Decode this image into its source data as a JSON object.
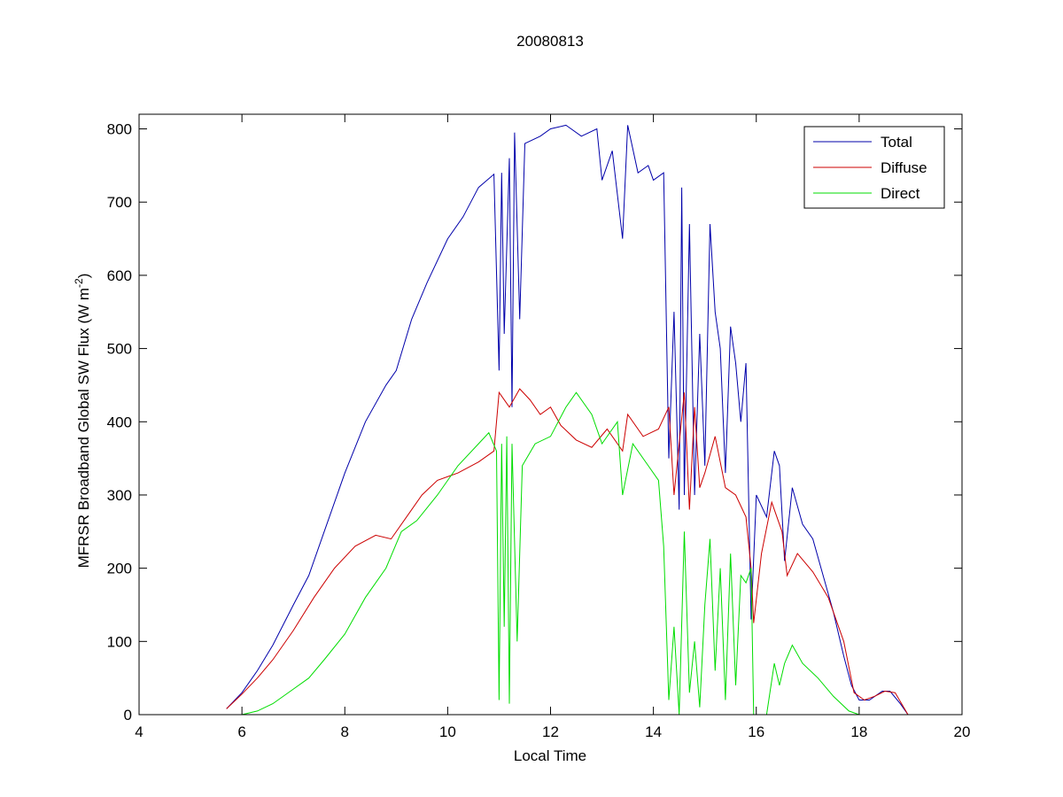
{
  "chart_data": {
    "type": "line",
    "title": "20080813",
    "xlabel": "Local Time",
    "ylabel": {
      "text": "MFRSR Broadband Global SW Flux (W m",
      "superscript": "-2",
      "suffix": ")"
    },
    "xlim": [
      4,
      20
    ],
    "xticks": [
      4,
      6,
      8,
      10,
      12,
      14,
      16,
      18,
      20
    ],
    "ylim": [
      0,
      820
    ],
    "yticks": [
      0,
      100,
      200,
      300,
      400,
      500,
      600,
      700,
      800
    ],
    "legend": "northeast",
    "series": [
      {
        "name": "Total",
        "color": "#0000aa",
        "x": [
          5.7,
          6.0,
          6.3,
          6.6,
          7.0,
          7.3,
          7.6,
          8.0,
          8.4,
          8.8,
          9.0,
          9.3,
          9.6,
          10.0,
          10.3,
          10.6,
          10.9,
          11.0,
          11.05,
          11.1,
          11.2,
          11.25,
          11.3,
          11.4,
          11.5,
          11.8,
          12.0,
          12.3,
          12.6,
          12.9,
          13.0,
          13.2,
          13.4,
          13.5,
          13.7,
          13.9,
          14.0,
          14.2,
          14.3,
          14.4,
          14.5,
          14.55,
          14.6,
          14.7,
          14.8,
          14.9,
          15.0,
          15.1,
          15.2,
          15.3,
          15.4,
          15.5,
          15.6,
          15.7,
          15.8,
          15.9,
          16.0,
          16.2,
          16.35,
          16.45,
          16.55,
          16.7,
          16.9,
          17.1,
          17.3,
          17.5,
          17.7,
          17.85,
          18.0,
          18.2,
          18.45,
          18.6,
          18.8,
          18.95
        ],
        "values": [
          8,
          30,
          60,
          95,
          150,
          190,
          250,
          330,
          400,
          450,
          470,
          540,
          590,
          650,
          680,
          720,
          738,
          470,
          740,
          520,
          760,
          420,
          795,
          540,
          780,
          790,
          800,
          805,
          790,
          800,
          730,
          770,
          650,
          805,
          740,
          750,
          730,
          740,
          350,
          550,
          280,
          720,
          300,
          670,
          300,
          520,
          340,
          670,
          550,
          500,
          330,
          530,
          480,
          400,
          480,
          130,
          300,
          270,
          360,
          340,
          210,
          310,
          260,
          240,
          190,
          140,
          80,
          40,
          20,
          20,
          32,
          32,
          15,
          0
        ]
      },
      {
        "name": "Diffuse",
        "color": "#cc0000",
        "x": [
          5.7,
          6.0,
          6.3,
          6.6,
          7.0,
          7.4,
          7.8,
          8.2,
          8.6,
          8.9,
          9.2,
          9.5,
          9.8,
          10.2,
          10.6,
          10.9,
          11.0,
          11.2,
          11.4,
          11.6,
          11.8,
          12.0,
          12.2,
          12.5,
          12.8,
          13.1,
          13.4,
          13.5,
          13.8,
          14.1,
          14.3,
          14.4,
          14.6,
          14.7,
          14.8,
          14.9,
          15.0,
          15.2,
          15.4,
          15.6,
          15.8,
          15.9,
          15.95,
          16.1,
          16.3,
          16.5,
          16.6,
          16.8,
          17.1,
          17.4,
          17.7,
          17.9,
          18.1,
          18.3,
          18.5,
          18.7,
          18.95
        ],
        "values": [
          8,
          28,
          50,
          75,
          115,
          160,
          200,
          230,
          245,
          240,
          270,
          300,
          320,
          330,
          345,
          360,
          440,
          420,
          445,
          430,
          410,
          420,
          395,
          375,
          365,
          390,
          360,
          410,
          380,
          390,
          420,
          300,
          440,
          280,
          420,
          310,
          330,
          380,
          310,
          300,
          270,
          200,
          125,
          220,
          290,
          250,
          190,
          220,
          195,
          160,
          100,
          30,
          20,
          25,
          32,
          30,
          0
        ]
      },
      {
        "name": "Direct",
        "color": "#00dd00",
        "x": [
          6.0,
          6.3,
          6.6,
          7.0,
          7.3,
          7.6,
          8.0,
          8.4,
          8.8,
          9.1,
          9.4,
          9.8,
          10.2,
          10.6,
          10.8,
          10.95,
          11.0,
          11.05,
          11.1,
          11.15,
          11.2,
          11.25,
          11.35,
          11.45,
          11.7,
          12.0,
          12.3,
          12.5,
          12.8,
          13.0,
          13.3,
          13.4,
          13.6,
          13.9,
          14.1,
          14.2,
          14.3,
          14.4,
          14.5,
          14.6,
          14.7,
          14.8,
          14.9,
          15.0,
          15.1,
          15.2,
          15.3,
          15.4,
          15.5,
          15.6,
          15.7,
          15.8,
          15.9,
          15.95,
          16.2,
          16.35,
          16.45,
          16.55,
          16.7,
          16.9,
          17.2,
          17.5,
          17.8,
          18.0,
          18.4
        ],
        "values": [
          0,
          5,
          15,
          35,
          50,
          75,
          110,
          160,
          200,
          250,
          265,
          300,
          340,
          370,
          385,
          360,
          20,
          370,
          120,
          380,
          15,
          370,
          100,
          340,
          370,
          380,
          420,
          440,
          410,
          370,
          400,
          300,
          370,
          340,
          320,
          230,
          20,
          120,
          0,
          250,
          30,
          100,
          10,
          150,
          240,
          60,
          200,
          20,
          220,
          40,
          190,
          180,
          200,
          0,
          0,
          70,
          40,
          70,
          95,
          70,
          50,
          25,
          5,
          0,
          0
        ]
      }
    ]
  }
}
